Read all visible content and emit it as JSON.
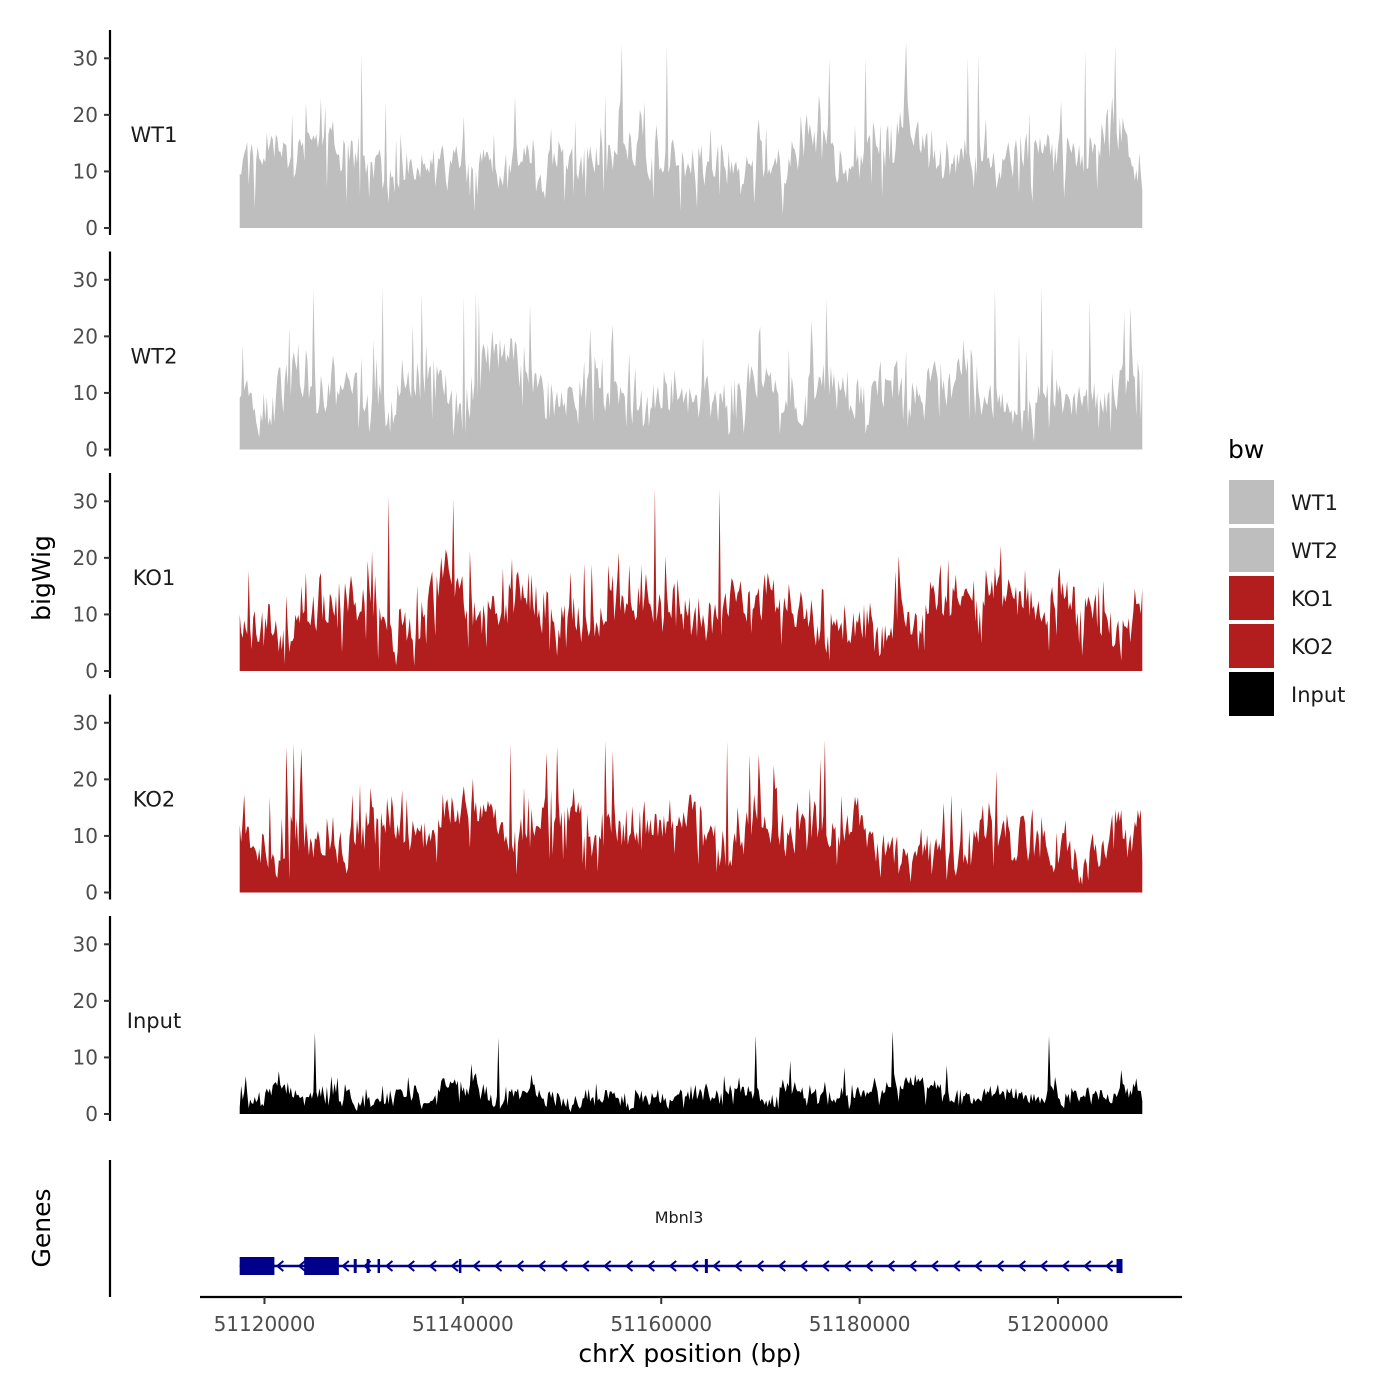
{
  "chart_data": {
    "type": "area",
    "ylabel": "bigWig",
    "xlabel": "chrX position (bp)",
    "gene_panel_label": "Genes",
    "region": {
      "chrom": "chrX",
      "start": 51117500,
      "end": 51208500
    },
    "xlim": [
      51113500,
      51212500
    ],
    "x_ticks": [
      51120000,
      51140000,
      51160000,
      51180000,
      51200000
    ],
    "x_tick_labels": [
      "51120000",
      "51140000",
      "51160000",
      "51180000",
      "51200000"
    ],
    "ylim": [
      0,
      35
    ],
    "y_ticks": [
      0,
      10,
      20,
      30
    ],
    "y_tick_labels": [
      "0",
      "10",
      "20",
      "30"
    ],
    "tracks": [
      {
        "name": "WT1",
        "color": "#bebebe",
        "baseline": 12,
        "amplitude": 7,
        "peak_max": 33,
        "seed": 11
      },
      {
        "name": "WT2",
        "color": "#bebebe",
        "baseline": 11,
        "amplitude": 7,
        "peak_max": 29,
        "seed": 23
      },
      {
        "name": "KO1",
        "color": "#b21e1e",
        "baseline": 10,
        "amplitude": 7,
        "peak_max": 33,
        "seed": 37
      },
      {
        "name": "KO2",
        "color": "#b21e1e",
        "baseline": 10,
        "amplitude": 7,
        "peak_max": 27,
        "seed": 51
      },
      {
        "name": "Input",
        "color": "#000000",
        "baseline": 3.5,
        "amplitude": 2.5,
        "peak_max": 15,
        "seed": 67
      }
    ],
    "legend": {
      "title": "bw",
      "position": "right",
      "entries": [
        {
          "label": "WT1",
          "color": "#bebebe"
        },
        {
          "label": "WT2",
          "color": "#bebebe"
        },
        {
          "label": "KO1",
          "color": "#b21e1e"
        },
        {
          "label": "KO2",
          "color": "#b21e1e"
        },
        {
          "label": "Input",
          "color": "#000000"
        }
      ]
    },
    "gene": {
      "name": "Mbnl3",
      "strand": "-",
      "color": "#00008b",
      "tx_start": 51117500,
      "tx_end": 51206500,
      "exons": [
        [
          51117500,
          51121000
        ],
        [
          51124000,
          51127500
        ],
        [
          51129000,
          51129300
        ],
        [
          51130300,
          51130600
        ],
        [
          51131400,
          51131600
        ],
        [
          51139600,
          51139800
        ],
        [
          51164400,
          51164700
        ],
        [
          51205900,
          51206500
        ]
      ]
    }
  }
}
